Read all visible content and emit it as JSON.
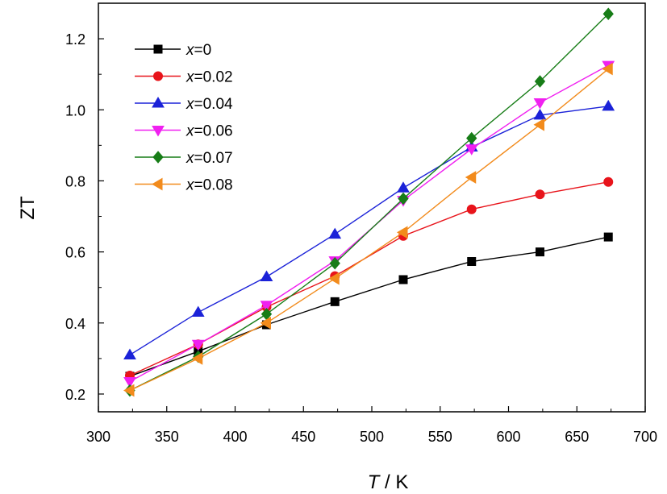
{
  "chart_data": {
    "type": "line",
    "xlabel_var": "T",
    "xlabel_unit": " / K",
    "ylabel": "ZT",
    "xlim": [
      300,
      700
    ],
    "ylim": [
      0.15,
      1.3
    ],
    "xticks": [
      300,
      350,
      400,
      450,
      500,
      550,
      600,
      650,
      700
    ],
    "yticks": [
      0.2,
      0.4,
      0.6,
      0.8,
      1.0,
      1.2
    ],
    "ytick_labels": [
      "0.2",
      "0.4",
      "0.6",
      "0.8",
      "1.0",
      "1.2"
    ],
    "legend_position": "top-left",
    "x": [
      323,
      373,
      423,
      473,
      523,
      573,
      623,
      673
    ],
    "series": [
      {
        "var": "x",
        "label": "=0",
        "color": "#000000",
        "marker": "square",
        "values": [
          0.25,
          0.32,
          0.395,
          0.46,
          0.522,
          0.573,
          0.6,
          0.642
        ]
      },
      {
        "var": "x",
        "label": "=0.02",
        "color": "#e8141b",
        "marker": "circle",
        "values": [
          0.252,
          0.34,
          0.445,
          0.532,
          0.645,
          0.72,
          0.762,
          0.797
        ]
      },
      {
        "var": "x",
        "label": "=0.04",
        "color": "#1b22d8",
        "marker": "triangle-up",
        "values": [
          0.31,
          0.43,
          0.53,
          0.65,
          0.78,
          0.895,
          0.985,
          1.01
        ]
      },
      {
        "var": "x",
        "label": "=0.06",
        "color": "#f020f0",
        "marker": "triangle-down",
        "values": [
          0.235,
          0.34,
          0.45,
          0.575,
          0.745,
          0.89,
          1.02,
          1.125
        ]
      },
      {
        "var": "x",
        "label": "=0.07",
        "color": "#177d17",
        "marker": "diamond",
        "values": [
          0.21,
          0.305,
          0.425,
          0.568,
          0.75,
          0.92,
          1.08,
          1.27
        ]
      },
      {
        "var": "x",
        "label": "=0.08",
        "color": "#f28b1c",
        "marker": "triangle-left",
        "values": [
          0.21,
          0.3,
          0.4,
          0.525,
          0.655,
          0.81,
          0.958,
          1.115
        ]
      }
    ]
  }
}
